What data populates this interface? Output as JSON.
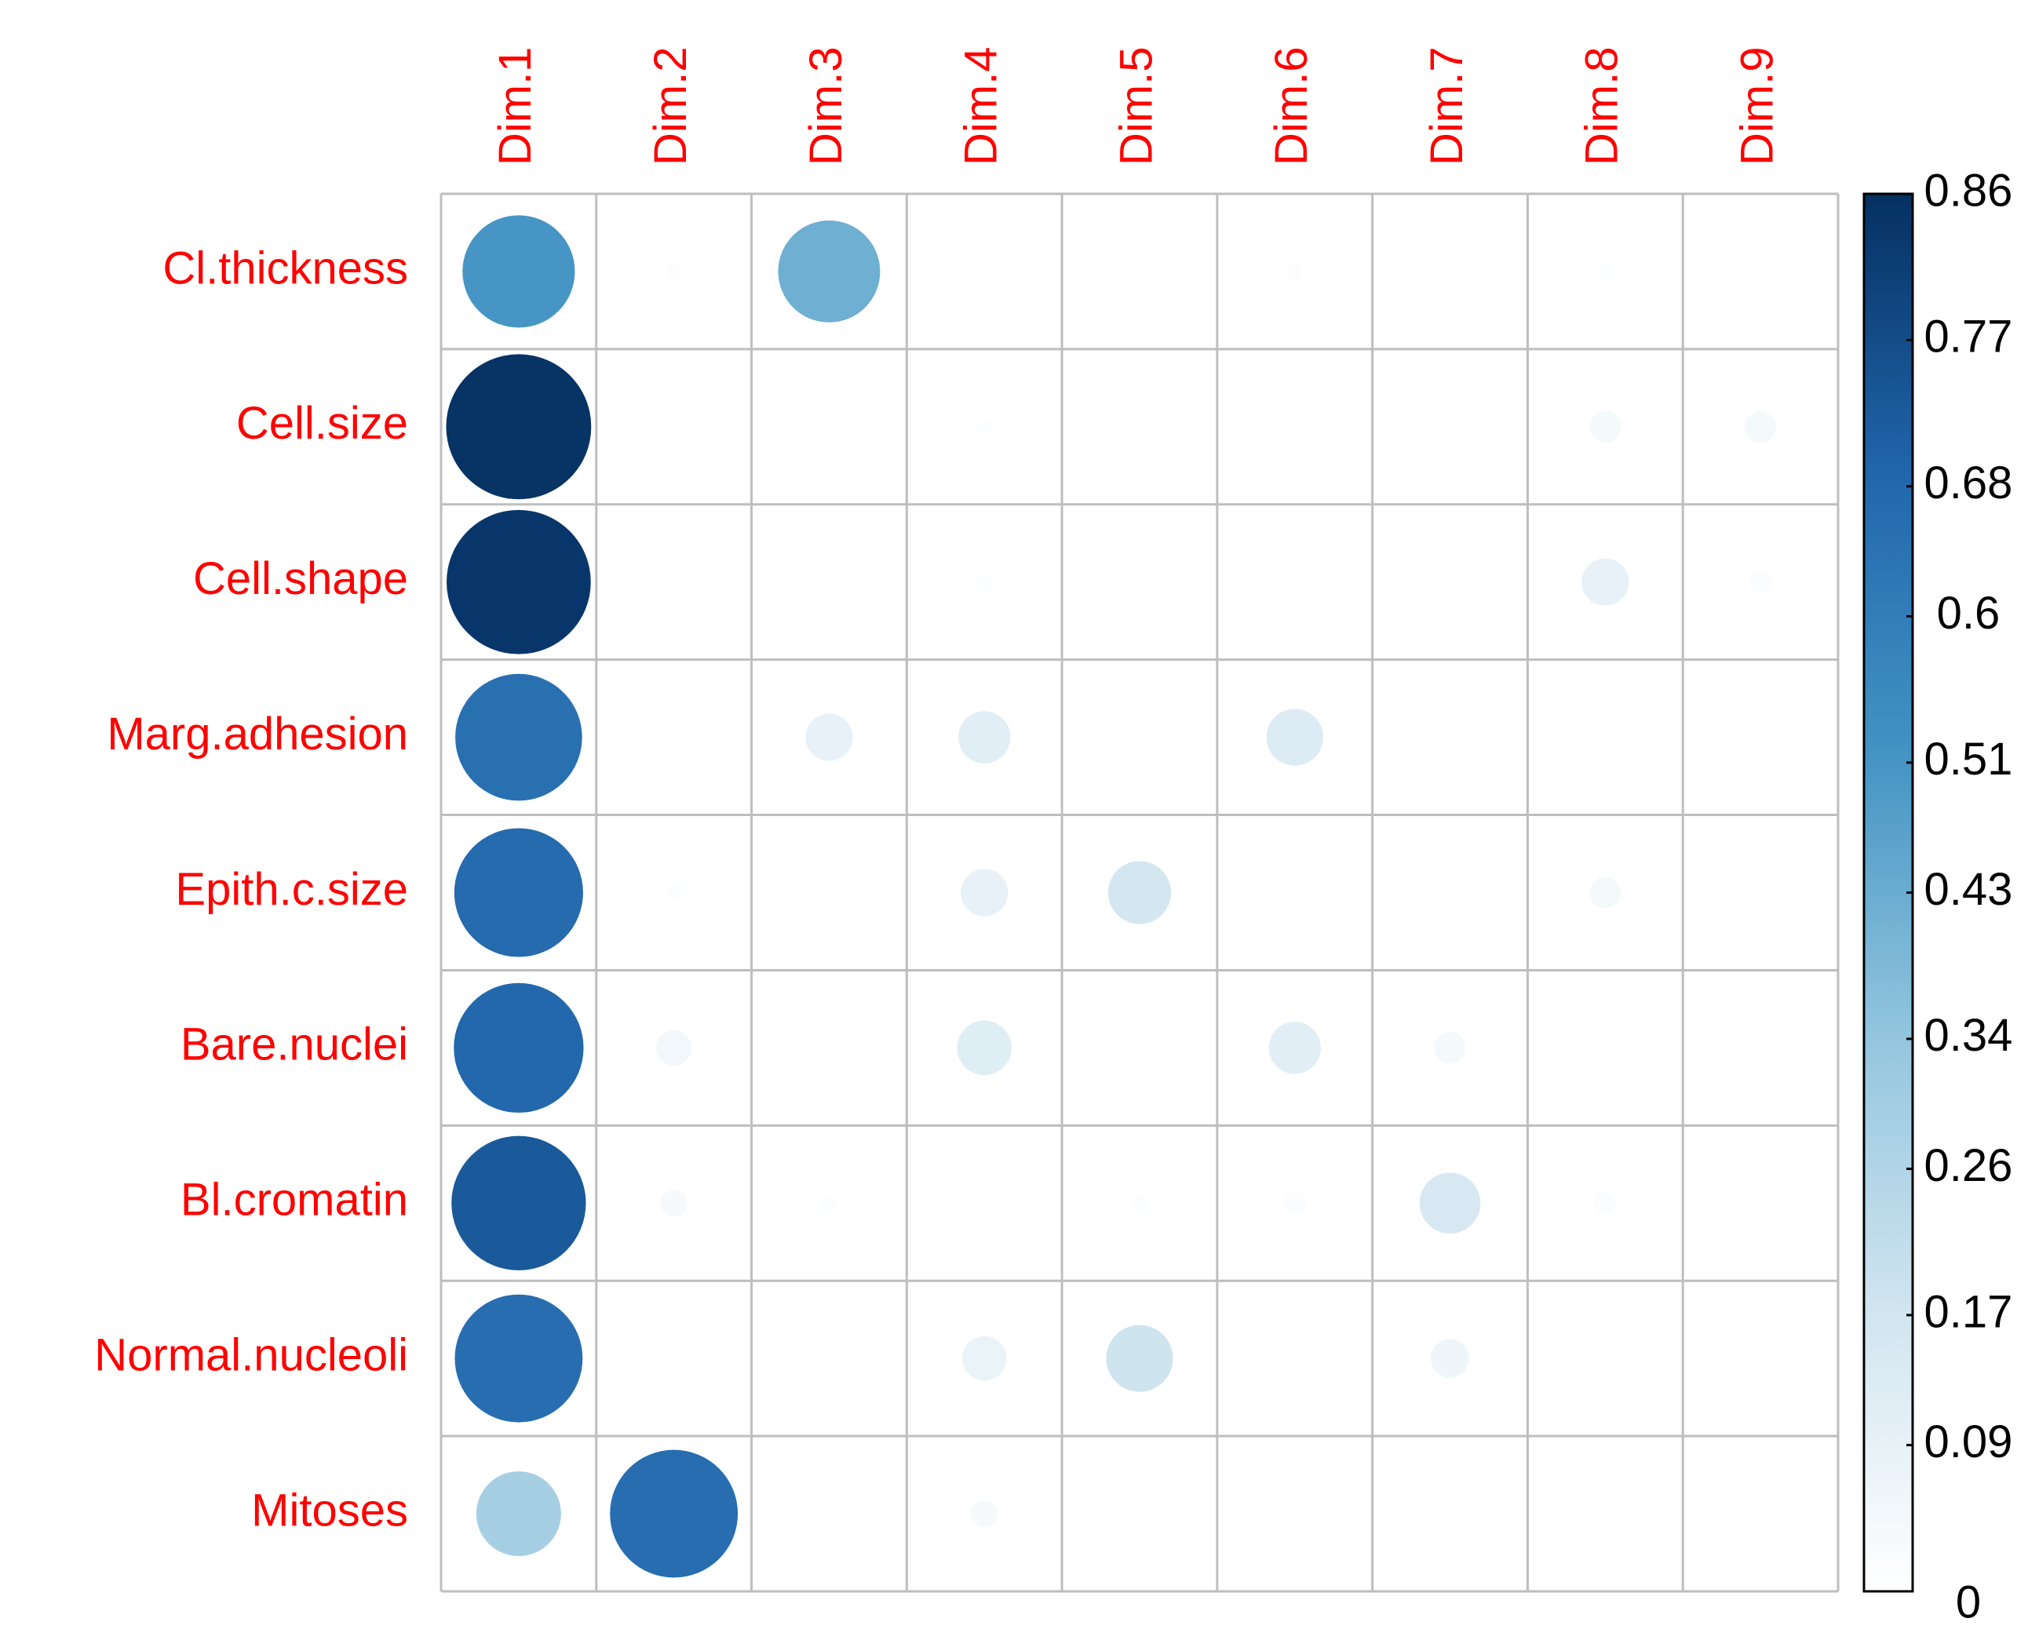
{
  "chart_data": {
    "type": "corrplot",
    "columns": [
      "Dim.1",
      "Dim.2",
      "Dim.3",
      "Dim.4",
      "Dim.5",
      "Dim.6",
      "Dim.7",
      "Dim.8",
      "Dim.9"
    ],
    "rows": [
      "Cl.thickness",
      "Cell.size",
      "Cell.shape",
      "Marg.adhesion",
      "Epith.c.size",
      "Bare.nuclei",
      "Bl.cromatin",
      "Normal.nucleoli",
      "Mitoses"
    ],
    "values": [
      [
        0.51,
        0.01,
        0.42,
        0,
        0,
        0.01,
        0,
        0.01,
        0
      ],
      [
        0.85,
        0,
        0,
        0.01,
        0.005,
        0,
        0.005,
        0.04,
        0.04
      ],
      [
        0.84,
        0,
        0,
        0.01,
        0,
        0,
        0,
        0.09,
        0.02
      ],
      [
        0.65,
        0,
        0.09,
        0.11,
        0,
        0.13,
        0,
        0,
        0
      ],
      [
        0.67,
        0.01,
        0,
        0.09,
        0.16,
        0,
        0.005,
        0.04,
        0
      ],
      [
        0.68,
        0.05,
        0,
        0.12,
        0,
        0.11,
        0.04,
        0,
        0
      ],
      [
        0.73,
        0.03,
        0.01,
        0,
        0.01,
        0.02,
        0.15,
        0.02,
        0
      ],
      [
        0.66,
        0,
        0.005,
        0.08,
        0.18,
        0,
        0.06,
        0,
        0
      ],
      [
        0.29,
        0.66,
        0,
        0.03,
        0,
        0,
        0,
        0,
        0
      ]
    ],
    "clim": [
      0,
      0.86
    ],
    "cticks": [
      0,
      0.09,
      0.17,
      0.26,
      0.34,
      0.43,
      0.51,
      0.6,
      0.68,
      0.77,
      0.86
    ],
    "palette": [
      "#FFFFFF",
      "#D1E5F0",
      "#92C5DE",
      "#4393C3",
      "#2166AC",
      "#053061"
    ],
    "label_color": "#FF0000",
    "grid": true
  }
}
